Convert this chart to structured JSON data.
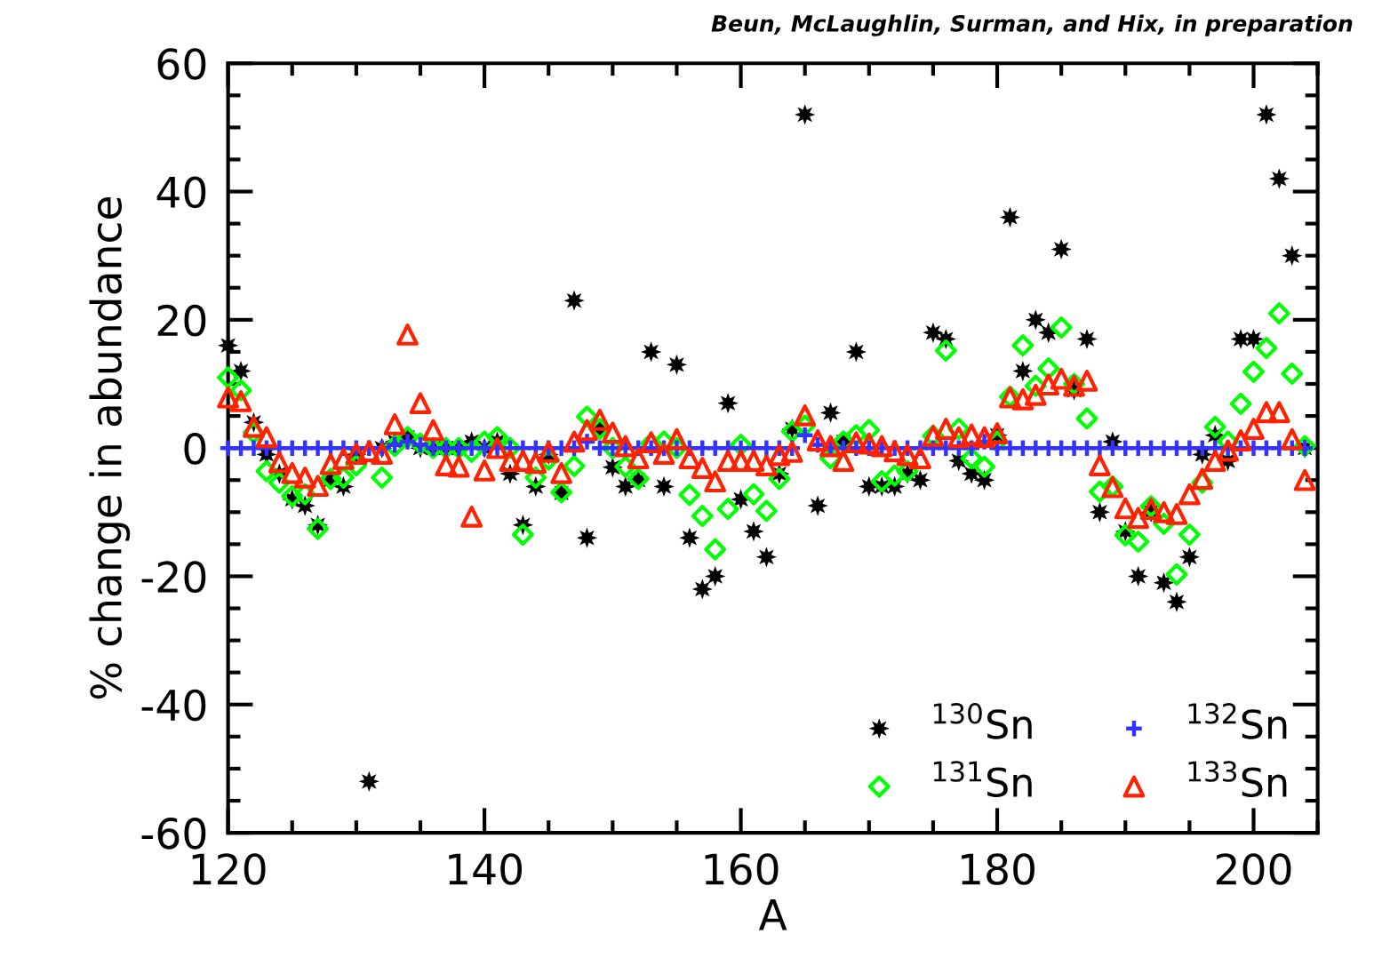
{
  "chart_data": {
    "type": "scatter",
    "xlabel": "A",
    "ylabel": "% change in abundance",
    "annotations": [
      "Beun, McLaughlin, Surman, and Hix, in preparation"
    ],
    "xlim": [
      120,
      205
    ],
    "xticks": [
      120,
      140,
      160,
      180,
      200
    ],
    "ylim": [
      -60,
      60
    ],
    "yticks": [
      -60,
      -40,
      -20,
      0,
      20,
      40,
      60
    ],
    "grid": false,
    "legend": "bottom right",
    "series": [
      {
        "name": "$^{130}$Sn",
        "color": "#000000",
        "marker": "star",
        "x": [
          120,
          121,
          122,
          123,
          124,
          125,
          126,
          127,
          128,
          129,
          130,
          131,
          132,
          133,
          134,
          135,
          136,
          137,
          138,
          139,
          140,
          141,
          142,
          143,
          144,
          145,
          146,
          147,
          148,
          149,
          150,
          151,
          152,
          153,
          154,
          155,
          156,
          157,
          158,
          159,
          160,
          161,
          162,
          163,
          164,
          165,
          166,
          167,
          168,
          169,
          170,
          171,
          172,
          173,
          174,
          175,
          176,
          177,
          178,
          179,
          180,
          181,
          182,
          183,
          184,
          185,
          186,
          187,
          188,
          189,
          190,
          191,
          192,
          193,
          194,
          195,
          196,
          197,
          198,
          199,
          200,
          201,
          202,
          203,
          204
        ],
        "values": [
          16,
          12,
          4,
          -1,
          -4,
          -8,
          -9,
          -12,
          -5,
          -6,
          -1,
          -52,
          0,
          1,
          1.7,
          0,
          0,
          0,
          0,
          1,
          0,
          1,
          -4,
          -12,
          -6,
          -1,
          -7,
          23,
          -14,
          3,
          -3,
          -6,
          -5,
          15,
          -6,
          13,
          -14,
          -22,
          -20,
          7,
          -8,
          -13,
          -17,
          -4,
          3,
          52,
          -9,
          5.5,
          1,
          15,
          -6,
          -6,
          -6,
          -4,
          -5,
          18,
          17,
          -2,
          -4,
          -5,
          2,
          36,
          12,
          20,
          18,
          31,
          9,
          17,
          -10,
          1,
          -13,
          -20,
          -10,
          -21,
          -24,
          -17,
          -1,
          2,
          -2,
          17,
          17,
          52,
          42,
          30,
          0
        ]
      },
      {
        "name": "$^{131}$Sn",
        "color": "#00ff00",
        "marker": "diamond",
        "x": [
          120,
          121,
          122,
          123,
          124,
          125,
          126,
          127,
          128,
          129,
          130,
          132,
          133,
          134,
          135,
          136,
          137,
          138,
          139,
          140,
          141,
          142,
          143,
          144,
          145,
          146,
          147,
          148,
          149,
          150,
          151,
          152,
          153,
          154,
          155,
          156,
          157,
          158,
          159,
          160,
          161,
          162,
          163,
          164,
          165,
          167,
          168,
          169,
          170,
          171,
          172,
          173,
          175,
          176,
          177,
          178,
          179,
          180,
          181,
          182,
          183,
          184,
          185,
          186,
          187,
          188,
          189,
          190,
          191,
          192,
          193,
          194,
          195,
          196,
          197,
          198,
          199,
          200,
          201,
          202,
          203,
          204
        ],
        "values": [
          11,
          9,
          2.4,
          -3.6,
          -5.4,
          -7.5,
          -7.2,
          -12.6,
          -4.8,
          -4.6,
          -2.7,
          -4.6,
          0.3,
          1.7,
          0.7,
          0,
          0,
          0,
          -0.6,
          1,
          1.7,
          0,
          -13.5,
          -4.6,
          -1.8,
          -6.9,
          -2.8,
          4.9,
          3,
          0,
          -2.9,
          -4.8,
          0.7,
          1,
          0,
          -7.3,
          -10.6,
          -15.8,
          -9.5,
          0.5,
          -7.2,
          -9.8,
          -4.8,
          2.6,
          3.5,
          -1.6,
          1,
          2,
          2.8,
          -5.2,
          -4.3,
          -3.6,
          1.9,
          15.2,
          3,
          -1.6,
          -2.9,
          1,
          8,
          16,
          9.7,
          12.4,
          18.8,
          10,
          4.6,
          -6.8,
          -6,
          -13.6,
          -14.6,
          -9.1,
          -11.8,
          -19.7,
          -13.5,
          -5.4,
          3.3,
          1,
          6.9,
          11.9,
          15.6,
          21,
          11.6,
          0.3
        ]
      },
      {
        "name": "$^{132}$Sn",
        "color": "#3333ff",
        "marker": "cross",
        "x": [
          120,
          121,
          122,
          123,
          124,
          125,
          126,
          127,
          128,
          129,
          130,
          131,
          132,
          133,
          134,
          135,
          136,
          137,
          138,
          139,
          140,
          141,
          142,
          143,
          144,
          145,
          146,
          147,
          148,
          149,
          150,
          151,
          152,
          153,
          154,
          155,
          156,
          157,
          158,
          159,
          160,
          161,
          162,
          163,
          164,
          165,
          166,
          167,
          168,
          169,
          170,
          171,
          172,
          173,
          174,
          175,
          176,
          177,
          178,
          179,
          180,
          181,
          182,
          183,
          184,
          185,
          186,
          187,
          188,
          189,
          190,
          191,
          192,
          193,
          194,
          195,
          196,
          197,
          198,
          199,
          200,
          201,
          202,
          203,
          204
        ],
        "values": [
          0,
          0,
          0,
          0,
          0,
          0,
          0,
          0,
          0,
          0,
          0,
          0,
          0,
          0.5,
          1,
          0.5,
          0,
          0,
          0,
          0,
          0,
          0,
          0,
          0,
          0,
          0,
          0,
          0,
          1,
          0,
          0,
          0,
          0,
          0,
          0,
          0,
          0,
          0,
          0,
          0,
          0,
          0,
          0,
          0,
          0,
          2,
          0.5,
          0,
          0,
          0,
          0,
          0,
          0,
          0,
          0,
          0,
          0,
          0,
          0,
          1,
          0,
          0,
          0,
          0,
          0,
          0,
          0,
          0,
          0,
          0,
          0,
          0,
          0,
          0,
          0,
          0,
          0,
          0,
          0,
          0,
          0,
          0,
          0,
          0,
          0
        ]
      },
      {
        "name": "$^{133}$Sn",
        "color": "#ff2200",
        "marker": "triangle",
        "x": [
          120,
          121,
          122,
          123,
          124,
          125,
          126,
          127,
          128,
          129,
          130,
          131,
          132,
          133,
          134,
          135,
          136,
          137,
          138,
          139,
          140,
          141,
          142,
          143,
          144,
          145,
          146,
          147,
          148,
          149,
          150,
          151,
          152,
          153,
          154,
          155,
          156,
          157,
          158,
          159,
          160,
          161,
          162,
          163,
          164,
          165,
          166,
          167,
          168,
          169,
          170,
          171,
          172,
          173,
          174,
          175,
          176,
          177,
          178,
          179,
          180,
          181,
          182,
          183,
          184,
          185,
          186,
          187,
          188,
          189,
          190,
          191,
          192,
          193,
          194,
          195,
          196,
          197,
          198,
          199,
          200,
          201,
          202,
          203,
          204
        ],
        "values": [
          7.9,
          7.3,
          3.3,
          1.7,
          -2.2,
          -3.9,
          -4.6,
          -5.9,
          -2.5,
          -1.7,
          -0.9,
          -0.5,
          -0.9,
          3.7,
          17.7,
          7,
          2.8,
          -2.7,
          -2.9,
          -10.7,
          -3.5,
          0,
          -2,
          -2,
          -2.3,
          -0.6,
          -3.9,
          1,
          2.8,
          4.4,
          2.4,
          0.3,
          -1.6,
          0.9,
          -0.9,
          1.4,
          -1.6,
          -3.1,
          -5.2,
          -2,
          -2,
          -2,
          -2.7,
          -1.1,
          -0.6,
          5.1,
          1.2,
          0.3,
          -2,
          0.9,
          0.7,
          0.3,
          -0.5,
          -1.1,
          -1.6,
          1.9,
          3,
          1.7,
          2.1,
          1.7,
          2.3,
          7.9,
          7.6,
          8.3,
          9.9,
          10.8,
          9.7,
          10.5,
          -2.7,
          -6.1,
          -9.4,
          -10.9,
          -9.5,
          -10,
          -10.3,
          -7.2,
          -4.8,
          -2,
          -0.4,
          1.2,
          3,
          5.6,
          5.6,
          1.4,
          -5
        ]
      }
    ]
  }
}
